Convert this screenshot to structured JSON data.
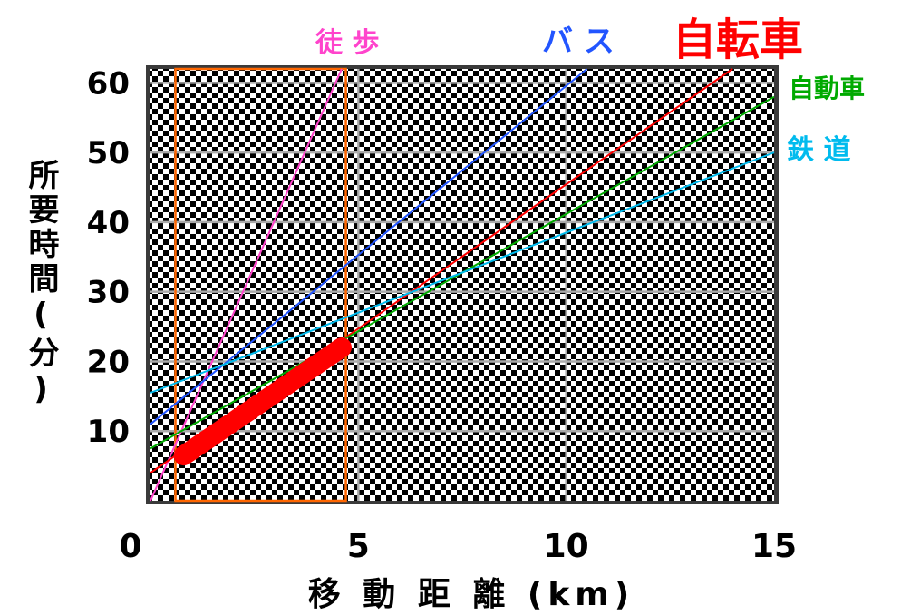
{
  "chart_data": {
    "type": "line",
    "xlabel": "移 動 距 離 (km)",
    "ylabel": "所要時間(分)",
    "xlim": [
      0,
      15
    ],
    "ylim": [
      0,
      62
    ],
    "x_ticks": [
      "0",
      "5",
      "10",
      "15"
    ],
    "y_ticks": [
      "10",
      "20",
      "30",
      "40",
      "50",
      "60"
    ],
    "grid": true,
    "series": [
      {
        "name": "徒 歩",
        "color": "#ff44cc",
        "x": [
          0,
          4.6
        ],
        "y": [
          0,
          62
        ]
      },
      {
        "name": "バ ス",
        "color": "#2255ff",
        "x": [
          0,
          10.5
        ],
        "y": [
          11,
          62
        ]
      },
      {
        "name": "自転車",
        "color": "#ff0000",
        "x": [
          0,
          14
        ],
        "y": [
          4,
          62
        ]
      },
      {
        "name": "自動車",
        "color": "#00aa00",
        "x": [
          0,
          15
        ],
        "y": [
          7.5,
          58
        ]
      },
      {
        "name": "鉄 道",
        "color": "#00bbee",
        "x": [
          0,
          15
        ],
        "y": [
          15.5,
          50
        ]
      }
    ],
    "annotations": {
      "highlight_box": {
        "x": [
          0.6,
          4.7
        ],
        "y": [
          0,
          62
        ],
        "color": "#ff6600"
      },
      "thick_segment": {
        "x": [
          0.8,
          4.6
        ],
        "y": [
          6.5,
          22
        ],
        "color": "#ff0000"
      }
    }
  }
}
